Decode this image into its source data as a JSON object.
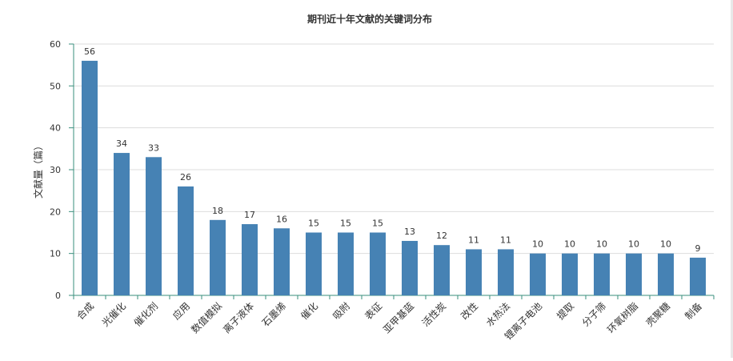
{
  "chart_data": {
    "type": "bar",
    "title": "期刊近十年文献的关键词分布",
    "xlabel": "",
    "ylabel": "文献量（篇）",
    "ylim": [
      0,
      60
    ],
    "yticks": [
      0,
      10,
      20,
      30,
      40,
      50,
      60
    ],
    "grid": true,
    "legend": "none",
    "bar_color": "#4682b4",
    "categories": [
      "合成",
      "光催化",
      "催化剂",
      "应用",
      "数值模拟",
      "离子液体",
      "石墨烯",
      "催化",
      "吸附",
      "表征",
      "亚甲基蓝",
      "活性炭",
      "改性",
      "水热法",
      "锂离子电池",
      "提取",
      "分子筛",
      "环氧树脂",
      "壳聚糖",
      "制备"
    ],
    "values": [
      56,
      34,
      33,
      26,
      18,
      17,
      16,
      15,
      15,
      15,
      13,
      12,
      11,
      11,
      10,
      10,
      10,
      10,
      10,
      9
    ]
  }
}
